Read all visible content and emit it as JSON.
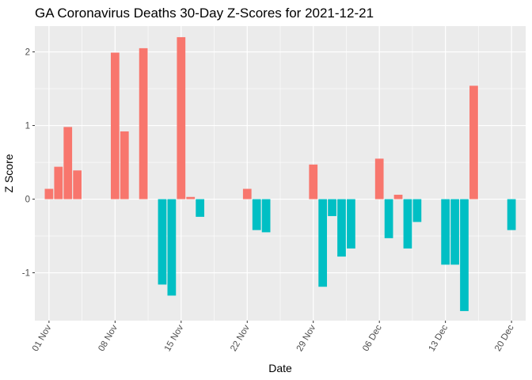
{
  "chart_data": {
    "type": "bar",
    "title": "GA Coronavirus Deaths 30-Day Z-Scores for 2021-12-21",
    "xlabel": "Date",
    "ylabel": "Z Score",
    "x_ticks": [
      "01 Nov",
      "08 Nov",
      "15 Nov",
      "22 Nov",
      "29 Nov",
      "06 Dec",
      "13 Dec",
      "20 Dec"
    ],
    "y_ticks": [
      -1,
      0,
      1,
      2
    ],
    "ylim": [
      -1.65,
      2.35
    ],
    "grid": true,
    "legend": "none",
    "colors": {
      "positive": "#F8766D",
      "negative": "#00BFC4",
      "panel": "#EBEBEB",
      "grid": "#FFFFFF"
    },
    "x": [
      "2021-11-01",
      "2021-11-02",
      "2021-11-03",
      "2021-11-04",
      "2021-11-05",
      "2021-11-06",
      "2021-11-07",
      "2021-11-08",
      "2021-11-09",
      "2021-11-10",
      "2021-11-11",
      "2021-11-12",
      "2021-11-13",
      "2021-11-14",
      "2021-11-15",
      "2021-11-16",
      "2021-11-17",
      "2021-11-18",
      "2021-11-19",
      "2021-11-20",
      "2021-11-21",
      "2021-11-22",
      "2021-11-23",
      "2021-11-24",
      "2021-11-25",
      "2021-11-26",
      "2021-11-27",
      "2021-11-28",
      "2021-11-29",
      "2021-11-30",
      "2021-12-01",
      "2021-12-02",
      "2021-12-03",
      "2021-12-04",
      "2021-12-05",
      "2021-12-06",
      "2021-12-07",
      "2021-12-08",
      "2021-12-09",
      "2021-12-10",
      "2021-12-11",
      "2021-12-12",
      "2021-12-13",
      "2021-12-14",
      "2021-12-15",
      "2021-12-16",
      "2021-12-17",
      "2021-12-18",
      "2021-12-19",
      "2021-12-20"
    ],
    "values": [
      0.14,
      0.44,
      0.98,
      0.39,
      0,
      0,
      0,
      1.99,
      0.92,
      0,
      2.05,
      0,
      -1.16,
      -1.31,
      2.2,
      0.03,
      -0.24,
      0,
      0,
      0,
      0,
      0.14,
      -0.42,
      -0.45,
      0,
      0,
      0,
      0,
      0.47,
      -1.19,
      -0.23,
      -0.78,
      -0.67,
      0,
      0,
      0.55,
      -0.53,
      0.06,
      -0.67,
      -0.31,
      0,
      0,
      -0.89,
      -0.89,
      -1.52,
      1.54,
      0,
      0,
      0,
      -0.42
    ]
  }
}
